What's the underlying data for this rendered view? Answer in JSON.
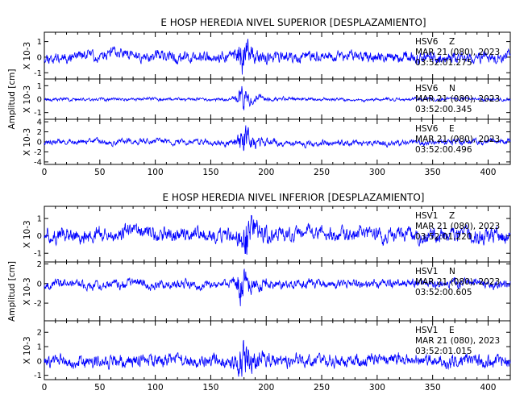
{
  "chart_data": [
    {
      "type": "line",
      "title": "E HOSP HEREDIA NIVEL SUPERIOR [DESPLAZAMIENTO]",
      "ylabel": "Amplitud [cm]",
      "xlim": [
        0,
        420
      ],
      "x_ticks": [
        "0",
        "50",
        "100",
        "150",
        "200",
        "250",
        "300",
        "350",
        "400"
      ],
      "x_tick_values": [
        0,
        50,
        100,
        150,
        200,
        250,
        300,
        350,
        400
      ],
      "panels": [
        {
          "channel": "Z",
          "station": "HSV6",
          "date": "MAR 21 (080), 2023",
          "time": "03:52:01.275",
          "scale_label": "X 10-3",
          "ylim": [
            -1.4,
            1.6
          ],
          "y_ticks": [
            "-1",
            "0",
            "1"
          ],
          "y_tick_values": [
            -1,
            0,
            1
          ],
          "base_amplitude": 0.35,
          "event_amplitude": 1.2,
          "event_center_s": 178,
          "seed": 11
        },
        {
          "channel": "N",
          "station": "HSV6",
          "date": "MAR 21 (080), 2023",
          "time": "03:52:00.345",
          "scale_label": "X 10-3",
          "ylim": [
            -1.5,
            1.5
          ],
          "y_ticks": [
            "-1",
            "0",
            "1"
          ],
          "y_tick_values": [
            -1,
            0,
            1
          ],
          "base_amplitude": 0.12,
          "event_amplitude": 0.9,
          "event_center_s": 177,
          "seed": 23
        },
        {
          "channel": "E",
          "station": "HSV6",
          "date": "MAR 21 (080), 2023",
          "time": "03:52:00.496",
          "scale_label": "X 10-3",
          "ylim": [
            -4.5,
            4.5
          ],
          "y_ticks": [
            "-4",
            "-2",
            "0",
            "2",
            "4"
          ],
          "y_tick_values": [
            -4,
            -2,
            0,
            2,
            4
          ],
          "base_amplitude": 0.6,
          "event_amplitude": 3.3,
          "event_center_s": 178,
          "seed": 37
        }
      ]
    },
    {
      "type": "line",
      "title": "E HOSP HEREDIA NIVEL INFERIOR [DESPLAZAMIENTO]",
      "ylabel": "Amplitud [cm]",
      "xlim": [
        0,
        420
      ],
      "x_ticks": [
        "0",
        "50",
        "100",
        "150",
        "200",
        "250",
        "300",
        "350",
        "400"
      ],
      "x_tick_values": [
        0,
        50,
        100,
        150,
        200,
        250,
        300,
        350,
        400
      ],
      "panels": [
        {
          "channel": "Z",
          "station": "HSV1",
          "date": "MAR 21 (080), 2023",
          "time": "03:52:01.220",
          "scale_label": "X 10-3",
          "ylim": [
            -1.5,
            1.7
          ],
          "y_ticks": [
            "-1",
            "0",
            "1"
          ],
          "y_tick_values": [
            -1,
            0,
            1
          ],
          "base_amplitude": 0.45,
          "event_amplitude": 1.2,
          "event_center_s": 180,
          "seed": 51
        },
        {
          "channel": "N",
          "station": "HSV1",
          "date": "MAR 21 (080), 2023",
          "time": "03:52:00.605",
          "scale_label": "X 10-3",
          "ylim": [
            -3.8,
            2.2
          ],
          "y_ticks": [
            "-2",
            "0",
            "2"
          ],
          "y_tick_values": [
            -2,
            0,
            2
          ],
          "base_amplitude": 0.45,
          "event_amplitude": 1.9,
          "event_center_s": 177,
          "seed": 67
        },
        {
          "channel": "E",
          "station": "HSV1",
          "date": "MAR 21 (080), 2023",
          "time": "03:52:01.015",
          "scale_label": "X 10-3",
          "ylim": [
            -1.3,
            2.8
          ],
          "y_ticks": [
            "-1",
            "0",
            "1",
            "2"
          ],
          "y_tick_values": [
            -1,
            0,
            1,
            2
          ],
          "base_amplitude": 0.45,
          "event_amplitude": 1.5,
          "event_center_s": 178,
          "seed": 83
        }
      ]
    }
  ],
  "colors": {
    "trace": "#0000ff",
    "axis": "#000000",
    "background": "#ffffff"
  }
}
